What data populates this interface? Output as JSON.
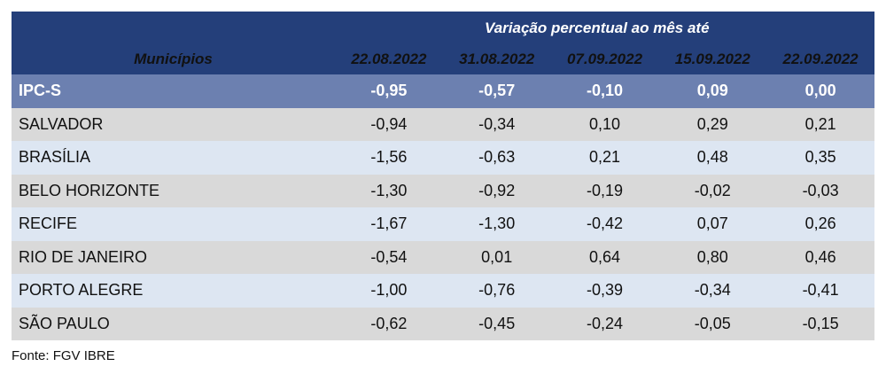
{
  "header": {
    "group_label": "Variação percentual ao mês até",
    "col_label": "Municípios",
    "dates": [
      "22.08.2022",
      "31.08.2022",
      "07.09.2022",
      "15.09.2022",
      "22.09.2022"
    ]
  },
  "rows": [
    {
      "name": "IPC-S",
      "values": [
        "-0,95",
        "-0,57",
        "-0,10",
        "0,09",
        "0,00"
      ]
    },
    {
      "name": "SALVADOR",
      "values": [
        "-0,94",
        "-0,34",
        "0,10",
        "0,29",
        "0,21"
      ]
    },
    {
      "name": "BRASÍLIA",
      "values": [
        "-1,56",
        "-0,63",
        "0,21",
        "0,48",
        "0,35"
      ]
    },
    {
      "name": "BELO HORIZONTE",
      "values": [
        "-1,30",
        "-0,92",
        "-0,19",
        "-0,02",
        "-0,03"
      ]
    },
    {
      "name": "RECIFE",
      "values": [
        "-1,67",
        "-1,30",
        "-0,42",
        "0,07",
        "0,26"
      ]
    },
    {
      "name": "RIO DE JANEIRO",
      "values": [
        "-0,54",
        "0,01",
        "0,64",
        "0,80",
        "0,46"
      ]
    },
    {
      "name": "PORTO ALEGRE",
      "values": [
        "-1,00",
        "-0,76",
        "-0,39",
        "-0,34",
        "-0,41"
      ]
    },
    {
      "name": "SÃO PAULO",
      "values": [
        "-0,62",
        "-0,45",
        "-0,24",
        "-0,05",
        "-0,15"
      ]
    }
  ],
  "footer": "Fonte: FGV IBRE"
}
